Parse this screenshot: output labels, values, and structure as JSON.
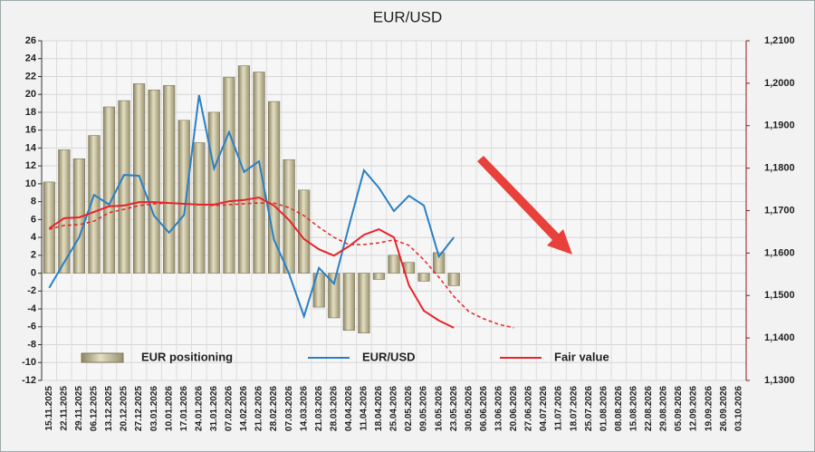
{
  "chart_data": {
    "type": "bar_line_combo",
    "title": "EUR/USD",
    "categories": [
      "15.11.2025",
      "22.11.2025",
      "29.11.2025",
      "06.12.2025",
      "13.12.2025",
      "20.12.2025",
      "27.12.2025",
      "03.01.2026",
      "10.01.2026",
      "17.01.2026",
      "24.01.2026",
      "31.01.2026",
      "07.02.2026",
      "14.02.2026",
      "21.02.2026",
      "28.02.2026",
      "07.03.2026",
      "14.03.2026",
      "21.03.2026",
      "28.03.2026",
      "04.04.2026",
      "11.04.2026",
      "18.04.2026",
      "25.04.2026",
      "02.05.2026",
      "09.05.2026",
      "16.05.2026",
      "23.05.2026",
      "30.05.2026",
      "06.06.2026",
      "13.06.2026",
      "20.06.2026",
      "27.06.2026",
      "04.07.2026",
      "11.07.2026",
      "18.07.2026",
      "25.07.2026",
      "01.08.2026",
      "08.08.2026",
      "15.08.2026",
      "22.08.2026",
      "29.08.2026",
      "05.09.2026",
      "12.09.2026",
      "19.09.2026",
      "26.09.2026",
      "03.10.2026"
    ],
    "series": [
      {
        "name": "EUR positioning",
        "kind": "bar",
        "color": "#c9c198",
        "values": [
          10.2,
          13.8,
          12.8,
          15.4,
          18.6,
          19.3,
          21.2,
          20.5,
          21.0,
          17.1,
          14.6,
          18.0,
          21.9,
          23.2,
          22.5,
          19.2,
          12.7,
          9.3,
          -3.8,
          -5.0,
          -6.4,
          -6.7,
          -0.7,
          2.0,
          1.2,
          -0.9,
          2.3,
          -1.4,
          null,
          null,
          null,
          null,
          null,
          null,
          null,
          null,
          null,
          null,
          null,
          null,
          null,
          null,
          null,
          null,
          null,
          null,
          null
        ]
      },
      {
        "name": "EUR/USD",
        "kind": "line",
        "axis": "y2",
        "color": "#2a7fc4",
        "values": [
          1.1518,
          1.1578,
          1.1637,
          1.1737,
          1.1714,
          1.1784,
          1.1782,
          1.1688,
          1.1648,
          1.169,
          1.1972,
          1.1799,
          1.1885,
          1.1791,
          1.1816,
          1.1631,
          1.1552,
          1.1451,
          1.1565,
          1.1528,
          1.1663,
          1.1795,
          1.1754,
          1.1699,
          1.1735,
          1.1712,
          1.1592,
          1.1637,
          null,
          null,
          null,
          null,
          null,
          null,
          null,
          null,
          null,
          null,
          null,
          null,
          null,
          null,
          null,
          null,
          null,
          null,
          null
        ]
      },
      {
        "name": "Fair value",
        "kind": "line",
        "axis": "y2",
        "color": "#e8232a",
        "values": [
          1.1658,
          1.1682,
          1.1684,
          1.1697,
          1.171,
          1.1712,
          1.172,
          1.172,
          1.1718,
          1.1716,
          1.1714,
          1.1714,
          1.1722,
          1.1725,
          1.1731,
          1.1712,
          1.1678,
          1.1633,
          1.1609,
          1.1594,
          1.1616,
          1.1643,
          1.1656,
          1.1637,
          1.1524,
          1.1464,
          1.1441,
          1.1424,
          null,
          null,
          null,
          null,
          null,
          null,
          null,
          null,
          null,
          null,
          null,
          null,
          null,
          null,
          null,
          null,
          null,
          null,
          null
        ]
      },
      {
        "kind": "line",
        "axis": "y2",
        "dashed": true,
        "color": "#e8232a",
        "values": [
          1.1656,
          1.1665,
          1.1667,
          1.1675,
          1.1695,
          1.1703,
          1.1712,
          1.1716,
          1.1718,
          1.1716,
          1.1714,
          1.1712,
          1.1714,
          1.1716,
          1.1718,
          1.1718,
          1.1707,
          1.1688,
          1.1661,
          1.1637,
          1.162,
          1.162,
          1.1624,
          1.1631,
          1.1618,
          1.1584,
          1.1543,
          1.1498,
          1.1462,
          1.1445,
          1.1432,
          1.1424,
          null,
          null,
          null,
          null,
          null,
          null,
          null,
          null,
          null,
          null,
          null,
          null,
          null,
          null,
          null
        ]
      }
    ],
    "ylim": [
      -12,
      26
    ],
    "yticks": [
      -12,
      -10,
      -8,
      -6,
      -4,
      -2,
      0,
      2,
      4,
      6,
      8,
      10,
      12,
      14,
      16,
      18,
      20,
      22,
      24,
      26
    ],
    "y2lim": [
      1.13,
      1.21
    ],
    "y2ticks": [
      {
        "value": 1.13,
        "label": "1,1300"
      },
      {
        "value": 1.14,
        "label": "1,1400"
      },
      {
        "value": 1.15,
        "label": "1,1500"
      },
      {
        "value": 1.16,
        "label": "1,1600"
      },
      {
        "value": 1.17,
        "label": "1,1700"
      },
      {
        "value": 1.18,
        "label": "1,1800"
      },
      {
        "value": 1.19,
        "label": "1,1900"
      },
      {
        "value": 1.2,
        "label": "1,2000"
      },
      {
        "value": 1.21,
        "label": "1,2100"
      }
    ],
    "grid": true
  }
}
